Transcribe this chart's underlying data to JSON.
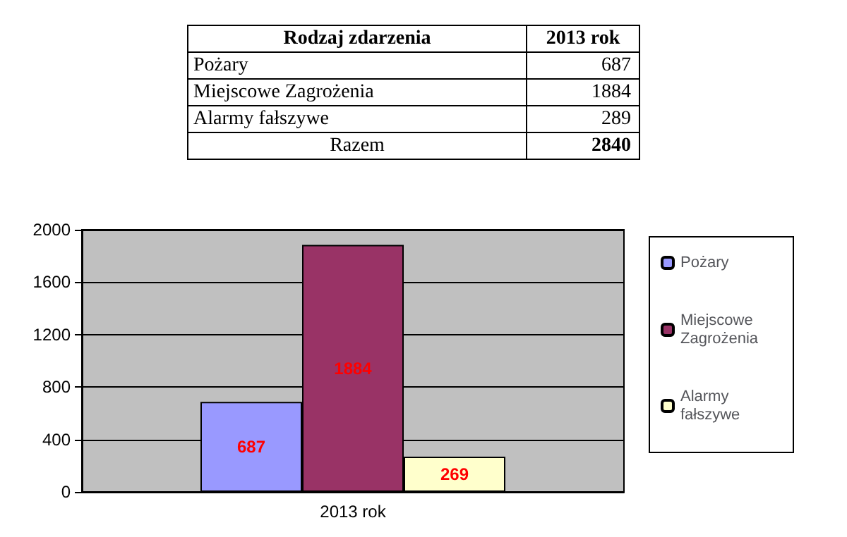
{
  "chart_data": {
    "type": "bar",
    "categories": [
      "2013 rok"
    ],
    "series": [
      {
        "name": "Pożary",
        "color": "#9999ff",
        "values": [
          687
        ]
      },
      {
        "name": "Miejscowe Zagrożenia",
        "color": "#993366",
        "values": [
          1884
        ]
      },
      {
        "name": "Alarmy fałszywe",
        "color": "#ffffcc",
        "values": [
          269
        ]
      }
    ],
    "ylim": [
      0,
      2000
    ],
    "yticks": [
      0,
      400,
      800,
      1200,
      1600,
      2000
    ],
    "grid": "y",
    "legend": "right",
    "data_labels": true,
    "annotations": [
      "Rodzaj zdarzenia",
      "2013 rok",
      "Pożary",
      "687",
      "Miejscowe Zagrożenia",
      "1884",
      "Alarmy fałszywe",
      "289",
      "Razem",
      "2840"
    ]
  }
}
